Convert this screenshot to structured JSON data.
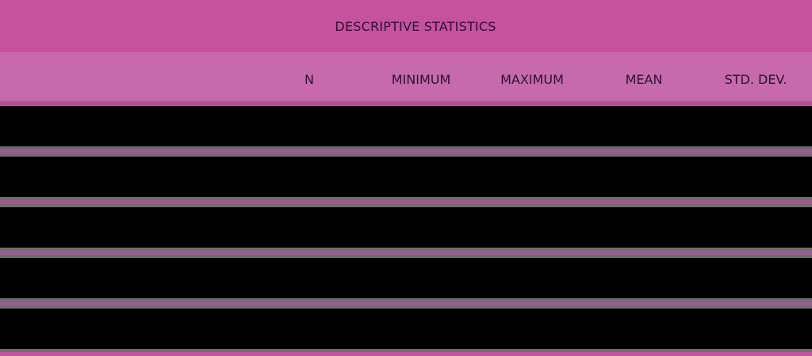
{
  "table": {
    "title": "DESCRIPTIVE STATISTICS",
    "columns": [
      "",
      "N",
      "MINIMUM",
      "MAXIMUM",
      "MEAN",
      "STD. DEV."
    ],
    "rows": [
      [
        "",
        "",
        "",
        "",
        "",
        ""
      ],
      [
        "",
        "",
        "",
        "",
        "",
        ""
      ],
      [
        "",
        "",
        "",
        "",
        "",
        ""
      ],
      [
        "",
        "",
        "",
        "",
        "",
        ""
      ],
      [
        "",
        "",
        "",
        "",
        "",
        ""
      ]
    ]
  },
  "colors": {
    "title_bg": "#c4529f",
    "header_bg": "#c76aad",
    "text": "#2a1030",
    "row_bg": "#000000"
  }
}
